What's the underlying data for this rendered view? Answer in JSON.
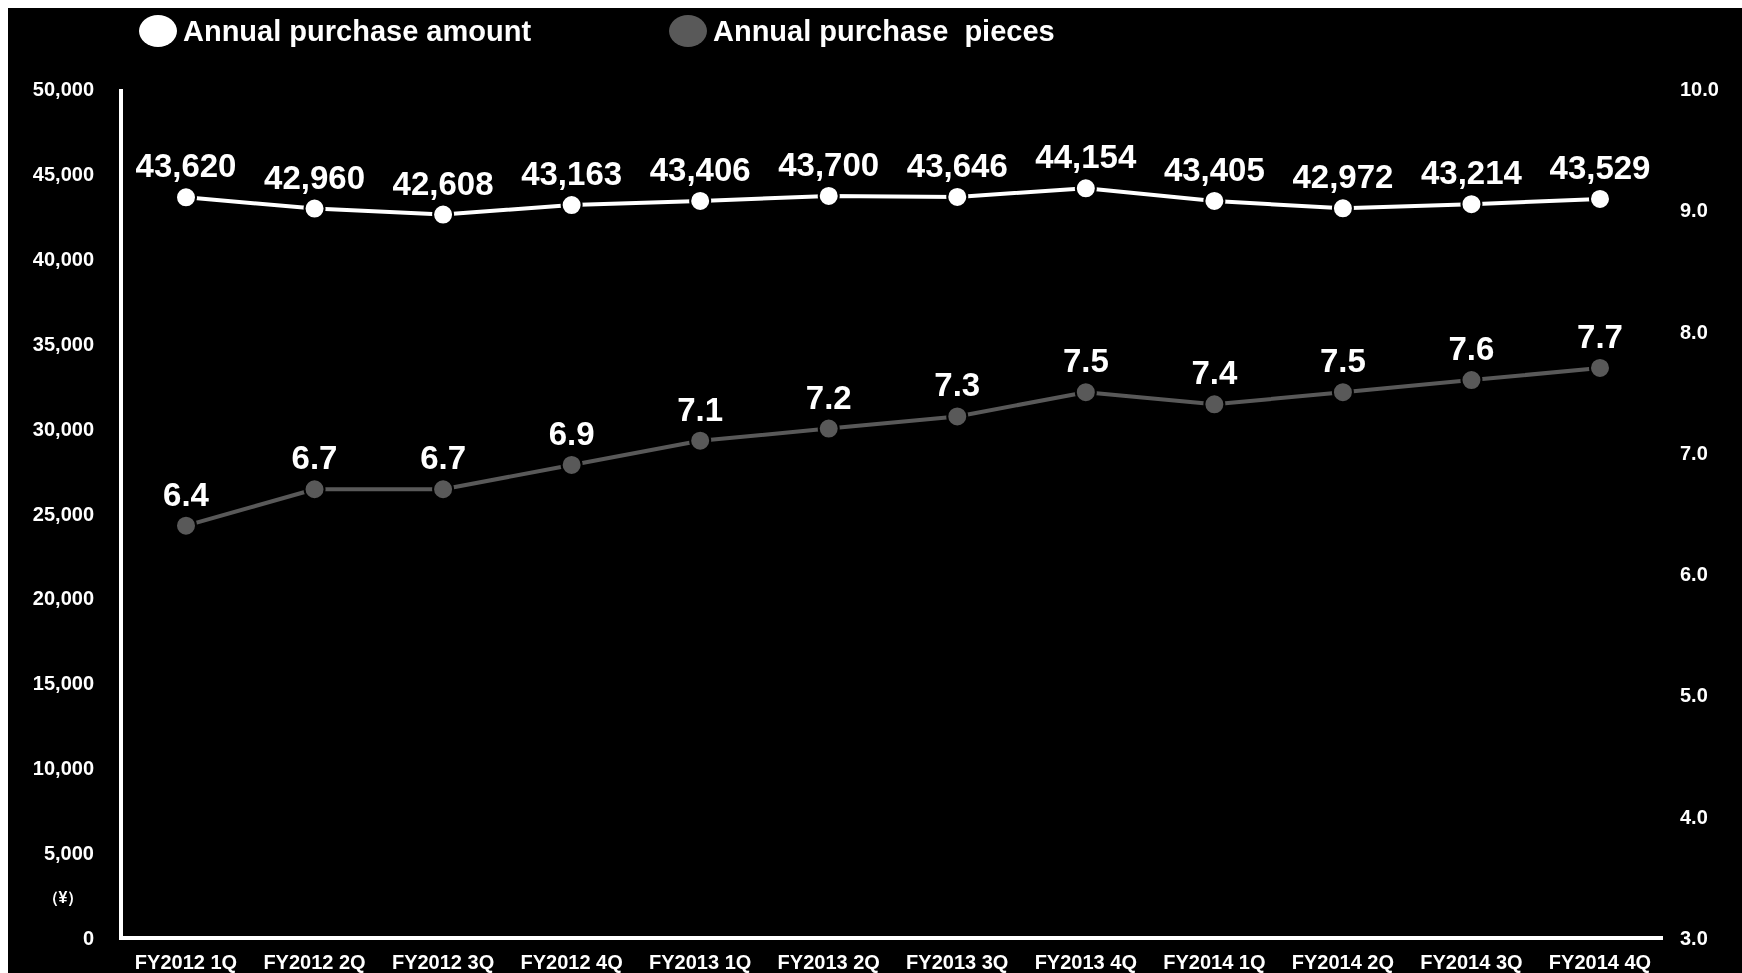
{
  "chart_data": {
    "type": "line",
    "categories": [
      "FY2012 1Q",
      "FY2012 2Q",
      "FY2012 3Q",
      "FY2012 4Q",
      "FY2013 1Q",
      "FY2013 2Q",
      "FY2013 3Q",
      "FY2013 4Q",
      "FY2014 1Q",
      "FY2014 2Q",
      "FY2014 3Q",
      "FY2014 4Q"
    ],
    "ylabel": "（¥）",
    "series": [
      {
        "name": "Annual purchase amount",
        "color": "#ffffff",
        "values": [
          43620,
          42960,
          42608,
          43163,
          43406,
          43700,
          43646,
          44154,
          43405,
          42972,
          43214,
          43529
        ],
        "value_labels": [
          "43,620",
          "42,960",
          "42,608",
          "43,163",
          "43,406",
          "43,700",
          "43,646",
          "44,154",
          "43,405",
          "42,972",
          "43,214",
          "43,529"
        ]
      },
      {
        "name": "Annual purchase  pieces",
        "color": "#595959",
        "axis": "y2",
        "values": [
          6.4,
          6.7,
          6.7,
          6.9,
          7.1,
          7.2,
          7.3,
          7.5,
          7.4,
          7.5,
          7.6,
          7.7
        ],
        "value_labels": [
          "6.4",
          "6.7",
          "6.7",
          "6.9",
          "7.1",
          "7.2",
          "7.3",
          "7.5",
          "7.4",
          "7.5",
          "7.6",
          "7.7"
        ]
      }
    ],
    "ylim": [
      0,
      50000
    ],
    "yticks": [
      0,
      {
        "value": 5000,
        "label": "5,000"
      },
      {
        "value": 10000,
        "label": "10,000"
      },
      {
        "value": 15000,
        "label": "15,000"
      },
      {
        "value": 20000,
        "label": "20,000"
      },
      {
        "value": 25000,
        "label": "25,000"
      },
      {
        "value": 30000,
        "label": "30,000"
      },
      {
        "value": 35000,
        "label": "35,000"
      },
      {
        "value": 40000,
        "label": "40,000"
      },
      {
        "value": 45000,
        "label": "45,000"
      },
      {
        "value": 50000,
        "label": "50,000"
      }
    ],
    "y2lim": [
      3,
      10
    ],
    "y2ticks": [
      {
        "value": 3,
        "label": "3.0"
      },
      {
        "value": 4,
        "label": "4.0"
      },
      {
        "value": 5,
        "label": "5.0"
      },
      {
        "value": 6,
        "label": "6.0"
      },
      {
        "value": 7,
        "label": "7.0"
      },
      {
        "value": 8,
        "label": "8.0"
      },
      {
        "value": 9,
        "label": "9.0"
      },
      {
        "value": 10,
        "label": "10.0"
      }
    ],
    "legend": "top left",
    "marker": "circle",
    "line_style": "solid",
    "grid": false
  }
}
